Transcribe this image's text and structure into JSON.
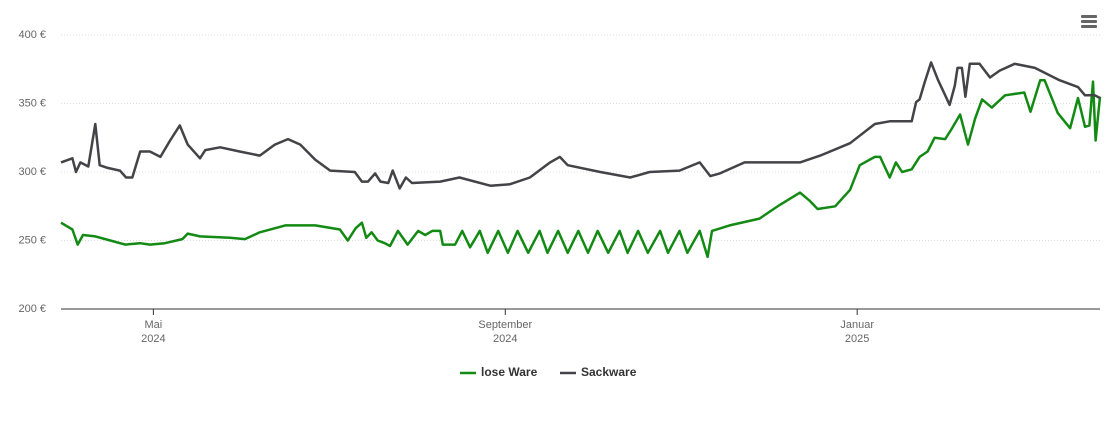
{
  "chart_data": {
    "type": "line",
    "xlim": [
      3.95,
      15.76
    ],
    "xticks": [
      {
        "value": 5,
        "label": "Mai\n2024"
      },
      {
        "value": 9,
        "label": "September\n2024"
      },
      {
        "value": 13,
        "label": "Januar\n2025"
      }
    ],
    "ylim": [
      200,
      400
    ],
    "yticks": [
      {
        "value": 200,
        "label": "200 €"
      },
      {
        "value": 250,
        "label": "250 €"
      },
      {
        "value": 300,
        "label": "300 €"
      },
      {
        "value": 350,
        "label": "350 €"
      },
      {
        "value": 400,
        "label": "400 €"
      }
    ],
    "grid": true,
    "legend": "bottom",
    "series": [
      {
        "name": "lose Ware",
        "color": "#138a13",
        "x": [
          3.95,
          4.08,
          4.14,
          4.2,
          4.34,
          4.51,
          4.68,
          4.85,
          4.96,
          5.13,
          5.33,
          5.39,
          5.53,
          5.87,
          6.04,
          6.21,
          6.5,
          6.84,
          7.12,
          7.21,
          7.3,
          7.37,
          7.42,
          7.48,
          7.55,
          7.63,
          7.69,
          7.78,
          7.89,
          8.01,
          8.09,
          8.17,
          8.26,
          8.29,
          8.43,
          8.51,
          8.6,
          8.71,
          8.8,
          8.92,
          9.03,
          9.14,
          9.26,
          9.39,
          9.48,
          9.6,
          9.71,
          9.83,
          9.94,
          10.05,
          10.17,
          10.3,
          10.39,
          10.51,
          10.62,
          10.76,
          10.85,
          10.98,
          11.07,
          11.21,
          11.3,
          11.35,
          11.55,
          11.89,
          12.12,
          12.35,
          12.46,
          12.55,
          12.75,
          12.92,
          13.03,
          13.2,
          13.26,
          13.37,
          13.44,
          13.51,
          13.62,
          13.71,
          13.8,
          13.88,
          14.0,
          14.07,
          14.17,
          14.26,
          14.34,
          14.42,
          14.53,
          14.68,
          14.9,
          14.97,
          15.08,
          15.13,
          15.28,
          15.42,
          15.51,
          15.59,
          15.64,
          15.68,
          15.71,
          15.76
        ],
        "values": [
          263,
          258,
          247,
          254,
          253,
          250,
          247,
          248,
          247,
          248,
          251,
          255,
          253,
          252,
          251,
          256,
          261,
          261,
          258,
          250,
          259,
          263,
          252,
          256,
          250,
          248,
          246,
          257,
          247,
          257,
          254,
          257,
          257,
          247,
          247,
          257,
          245,
          257,
          241,
          257,
          241,
          257,
          241,
          257,
          241,
          257,
          241,
          257,
          241,
          257,
          241,
          257,
          241,
          257,
          241,
          257,
          241,
          257,
          241,
          257,
          238,
          257,
          261,
          266,
          276,
          285,
          279,
          273,
          275,
          287,
          305,
          311,
          311,
          296,
          307,
          300,
          302,
          311,
          315,
          325,
          324,
          331,
          342,
          320,
          339,
          353,
          347,
          356,
          358,
          344,
          367,
          367,
          343,
          332,
          354,
          333,
          334,
          366,
          323,
          355
        ]
      },
      {
        "name": "Sackware",
        "color": "#434348",
        "x": [
          3.95,
          4.08,
          4.12,
          4.17,
          4.26,
          4.34,
          4.39,
          4.48,
          4.62,
          4.69,
          4.76,
          4.85,
          4.96,
          5.08,
          5.19,
          5.3,
          5.39,
          5.53,
          5.59,
          5.76,
          5.98,
          6.21,
          6.38,
          6.53,
          6.67,
          6.84,
          7.01,
          7.29,
          7.37,
          7.44,
          7.52,
          7.58,
          7.67,
          7.72,
          7.8,
          7.87,
          7.94,
          8.26,
          8.48,
          8.83,
          9.05,
          9.28,
          9.51,
          9.62,
          9.71,
          10.08,
          10.42,
          10.64,
          10.98,
          11.21,
          11.33,
          11.44,
          11.72,
          12.12,
          12.35,
          12.58,
          12.92,
          13.2,
          13.37,
          13.62,
          13.67,
          13.71,
          13.77,
          13.84,
          13.92,
          14.0,
          14.05,
          14.11,
          14.14,
          14.19,
          14.23,
          14.28,
          14.39,
          14.51,
          14.62,
          14.79,
          15.02,
          15.3,
          15.51,
          15.59,
          15.7,
          15.76
        ],
        "values": [
          307,
          310,
          300,
          307,
          304,
          335,
          305,
          303,
          301,
          296,
          296,
          315,
          315,
          311,
          323,
          334,
          320,
          310,
          316,
          318,
          315,
          312,
          320,
          324,
          320,
          309,
          301,
          300,
          293,
          293,
          299,
          293,
          292,
          301,
          288,
          296,
          292,
          293,
          296,
          290,
          291,
          296,
          307,
          311,
          305,
          300,
          296,
          300,
          301,
          307,
          297,
          299,
          307,
          307,
          307,
          312,
          321,
          335,
          337,
          337,
          351,
          353,
          366,
          380,
          367,
          356,
          349,
          363,
          376,
          376,
          355,
          379,
          379,
          369,
          374,
          379,
          376,
          367,
          362,
          356,
          356,
          354
        ]
      }
    ]
  }
}
